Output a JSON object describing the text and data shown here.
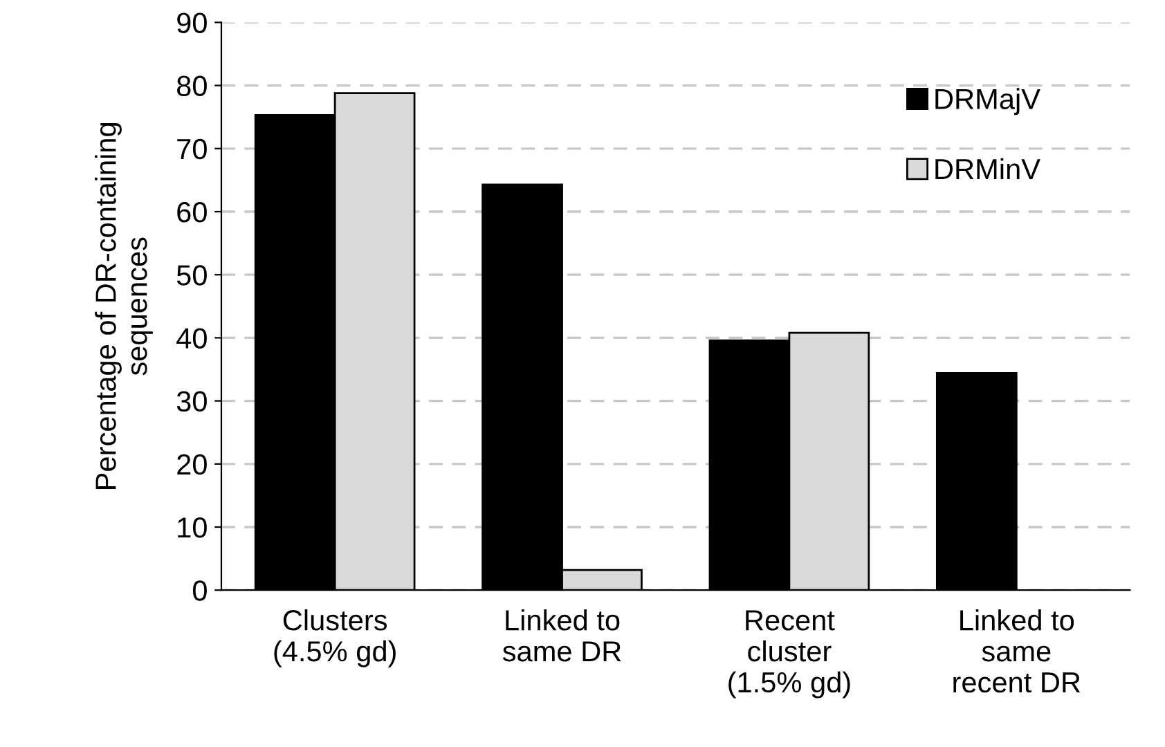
{
  "chart_data": {
    "type": "bar",
    "ylabel": "Percentage of DR-containing sequences",
    "categories": [
      "Clusters\n(4.5% gd)",
      "Linked to\nsame DR",
      "Recent\ncluster\n(1.5% gd)",
      "Linked to\nsame\nrecent DR"
    ],
    "series": [
      {
        "name": "DRMajV",
        "color": "#000000",
        "values": [
          75.3,
          64.3,
          39.6,
          34.4
        ]
      },
      {
        "name": "DRMinV",
        "color": "#d9d9d9",
        "values": [
          78.8,
          3.2,
          40.8,
          null
        ]
      }
    ],
    "ylim": [
      0,
      90
    ],
    "yticks": [
      0,
      10,
      20,
      30,
      40,
      50,
      60,
      70,
      80,
      90
    ],
    "grid": "y",
    "legend": "top right"
  }
}
